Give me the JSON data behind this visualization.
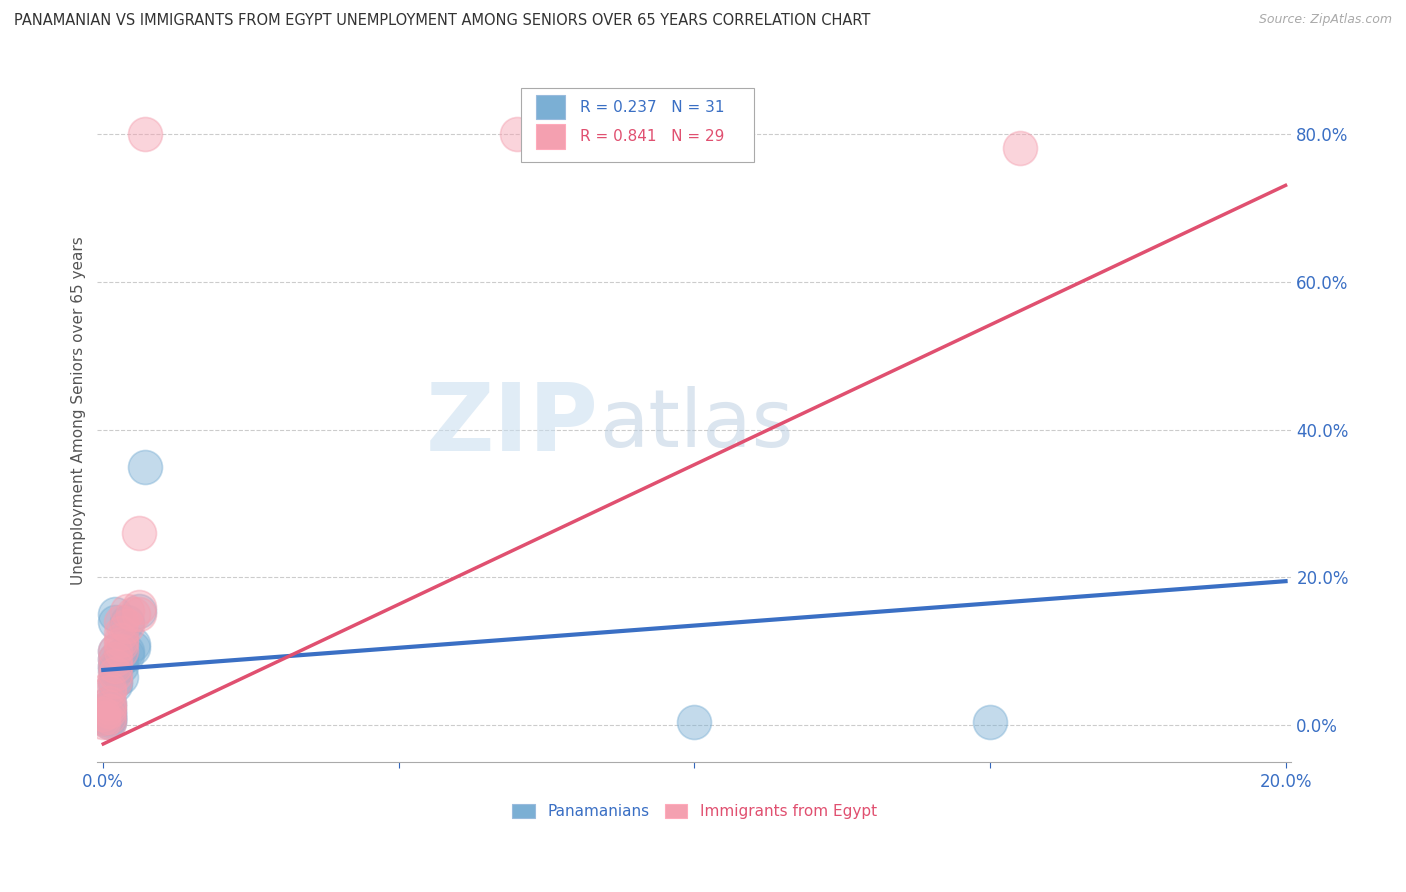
{
  "title": "PANAMANIAN VS IMMIGRANTS FROM EGYPT UNEMPLOYMENT AMONG SENIORS OVER 65 YEARS CORRELATION CHART",
  "source": "Source: ZipAtlas.com",
  "ylabel": "Unemployment Among Seniors over 65 years",
  "legend_blue_r": "R = 0.237",
  "legend_blue_n": "N = 31",
  "legend_pink_r": "R = 0.841",
  "legend_pink_n": "N = 29",
  "legend_label_blue": "Panamanians",
  "legend_label_pink": "Immigrants from Egypt",
  "blue_color": "#7BAFD4",
  "pink_color": "#F4A0B0",
  "blue_line_color": "#3A6FC4",
  "pink_line_color": "#E05070",
  "watermark_zip": "ZIP",
  "watermark_atlas": "atlas",
  "blue_scatter": [
    [
      0.0,
      0.02
    ],
    [
      0.0,
      0.01
    ],
    [
      0.001,
      0.015
    ],
    [
      0.001,
      0.005
    ],
    [
      0.001,
      0.025
    ],
    [
      0.001,
      0.01
    ],
    [
      0.001,
      0.008
    ],
    [
      0.001,
      0.012
    ],
    [
      0.001,
      0.018
    ],
    [
      0.001,
      0.03
    ],
    [
      0.002,
      0.06
    ],
    [
      0.002,
      0.075
    ],
    [
      0.002,
      0.09
    ],
    [
      0.002,
      0.1
    ],
    [
      0.002,
      0.055
    ],
    [
      0.002,
      0.08
    ],
    [
      0.002,
      0.14
    ],
    [
      0.002,
      0.15
    ],
    [
      0.003,
      0.065
    ],
    [
      0.003,
      0.09
    ],
    [
      0.003,
      0.095
    ],
    [
      0.003,
      0.08
    ],
    [
      0.004,
      0.095
    ],
    [
      0.004,
      0.1
    ],
    [
      0.004,
      0.14
    ],
    [
      0.005,
      0.11
    ],
    [
      0.005,
      0.105
    ],
    [
      0.006,
      0.155
    ],
    [
      0.007,
      0.35
    ],
    [
      0.1,
      0.005
    ],
    [
      0.15,
      0.005
    ]
  ],
  "pink_scatter": [
    [
      0.0,
      0.005
    ],
    [
      0.0,
      0.01
    ],
    [
      0.0,
      0.015
    ],
    [
      0.001,
      0.02
    ],
    [
      0.001,
      0.005
    ],
    [
      0.001,
      0.012
    ],
    [
      0.001,
      0.025
    ],
    [
      0.001,
      0.03
    ],
    [
      0.001,
      0.045
    ],
    [
      0.001,
      0.05
    ],
    [
      0.002,
      0.06
    ],
    [
      0.002,
      0.08
    ],
    [
      0.002,
      0.09
    ],
    [
      0.002,
      0.1
    ],
    [
      0.002,
      0.07
    ],
    [
      0.003,
      0.1
    ],
    [
      0.003,
      0.115
    ],
    [
      0.003,
      0.125
    ],
    [
      0.003,
      0.14
    ],
    [
      0.003,
      0.11
    ],
    [
      0.004,
      0.135
    ],
    [
      0.004,
      0.155
    ],
    [
      0.005,
      0.15
    ],
    [
      0.006,
      0.16
    ],
    [
      0.006,
      0.26
    ],
    [
      0.007,
      0.8
    ],
    [
      0.07,
      0.8
    ],
    [
      0.155,
      0.78
    ],
    [
      0.006,
      0.15
    ]
  ],
  "blue_line_x": [
    0.0,
    0.2
  ],
  "blue_line_y": [
    0.075,
    0.195
  ],
  "pink_line_x": [
    0.0,
    0.2
  ],
  "pink_line_y": [
    -0.025,
    0.73
  ],
  "xmin": -0.001,
  "xmax": 0.201,
  "ymin": -0.05,
  "ymax": 0.9,
  "yticks": [
    0.0,
    0.2,
    0.4,
    0.6,
    0.8
  ]
}
